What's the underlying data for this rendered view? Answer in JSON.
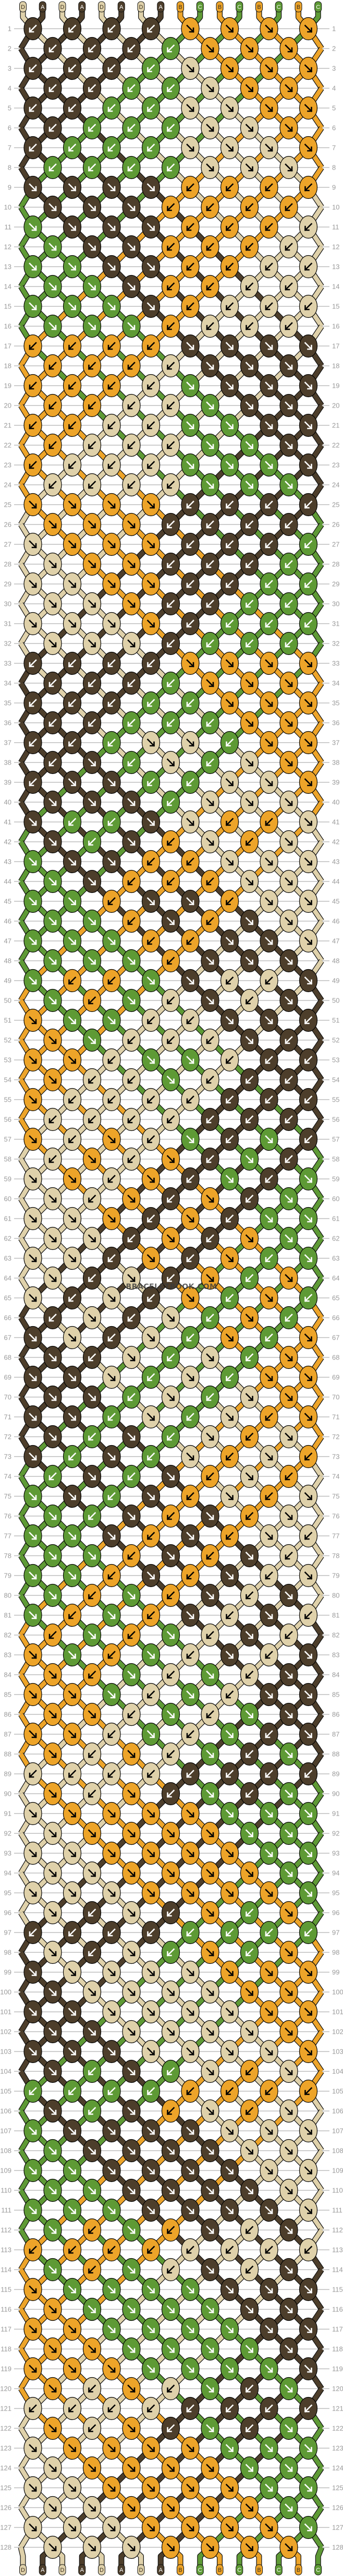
{
  "watermark": "BRACELETBOOK.COM",
  "strings": {
    "top": [
      "D",
      "A",
      "D",
      "A",
      "D",
      "A",
      "D",
      "A",
      "B",
      "C",
      "B",
      "C",
      "B",
      "C",
      "B",
      "C"
    ],
    "bottom": [
      "D",
      "A",
      "D",
      "A",
      "D",
      "A",
      "D",
      "A",
      "B",
      "C",
      "B",
      "C",
      "B",
      "C",
      "B",
      "C"
    ]
  },
  "colors": {
    "A": "#4d3e2b",
    "B": "#eda429",
    "C": "#5e9a35",
    "D": "#dfd1aa"
  },
  "knot_legend": {
    "R": "forward knot ↘",
    "L": "backward knot ↙"
  },
  "rows": [
    {
      "n": "1",
      "k": "LLLLRRRR"
    },
    {
      "n": "2",
      "k": "LLLLRRR"
    },
    {
      "n": "3",
      "k": "LLLLRRRR"
    },
    {
      "n": "4",
      "k": "LLLLRRR"
    },
    {
      "n": "5",
      "k": "LLLLRRRR"
    },
    {
      "n": "6",
      "k": "LLLLRRR"
    },
    {
      "n": "7",
      "k": "LLLLRRRR"
    },
    {
      "n": "8",
      "k": "LLLLRRR"
    },
    {
      "n": "9",
      "k": "RRRRLLLL"
    },
    {
      "n": "10",
      "k": "RRRLLLL"
    },
    {
      "n": "11",
      "k": "RRRRLLLL"
    },
    {
      "n": "12",
      "k": "RRRLLLL"
    },
    {
      "n": "13",
      "k": "RRRRLLLL"
    },
    {
      "n": "14",
      "k": "RRRLLLL"
    },
    {
      "n": "15",
      "k": "RRRRLLLL"
    },
    {
      "n": "16",
      "k": "RRRLLLL"
    },
    {
      "n": "17",
      "k": "LLLLRRRR"
    },
    {
      "n": "18",
      "k": "LLLLRRR"
    },
    {
      "n": "19",
      "k": "LLLLRRRR"
    },
    {
      "n": "20",
      "k": "LLLLRRR"
    },
    {
      "n": "21",
      "k": "LLLLRRRR"
    },
    {
      "n": "22",
      "k": "LLLLRRR"
    },
    {
      "n": "23",
      "k": "LLLLRRRR"
    },
    {
      "n": "24",
      "k": "LLLLRRR"
    },
    {
      "n": "25",
      "k": "RRRRLLLL"
    },
    {
      "n": "26",
      "k": "RRRLLLL"
    },
    {
      "n": "27",
      "k": "RRRRLLLL"
    },
    {
      "n": "28",
      "k": "RRRLLLL"
    },
    {
      "n": "29",
      "k": "RRRRLLLL"
    },
    {
      "n": "30",
      "k": "RRRLLLL"
    },
    {
      "n": "31",
      "k": "RRRRLLLL"
    },
    {
      "n": "32",
      "k": "RRRLLLL"
    },
    {
      "n": "33",
      "k": "LLLLRRRR"
    },
    {
      "n": "34",
      "k": "LLLLRRR"
    },
    {
      "n": "35",
      "k": "LLLLLRRR"
    },
    {
      "n": "36",
      "k": "LLLLLRR"
    },
    {
      "n": "37",
      "k": "LLLRRLRR"
    },
    {
      "n": "38",
      "k": "LRLRLRR"
    },
    {
      "n": "39",
      "k": "LRRLLRRR"
    },
    {
      "n": "40",
      "k": "RRRLRRR"
    },
    {
      "n": "41",
      "k": "RLLRRLLR"
    },
    {
      "n": "42",
      "k": "RLRLRLR"
    },
    {
      "n": "43",
      "k": "RRRLLRRR"
    },
    {
      "n": "44",
      "k": "RRLLLRR"
    },
    {
      "n": "45",
      "k": "RRLRRLRR"
    },
    {
      "n": "46",
      "k": "RRLRLRR"
    },
    {
      "n": "47",
      "k": "RRRLLRRR"
    },
    {
      "n": "48",
      "k": "RRRLRRR"
    },
    {
      "n": "49",
      "k": "RLLRRLLR"
    },
    {
      "n": "50",
      "k": "RLRLRLR"
    },
    {
      "n": "51",
      "k": "RRRLLRRL"
    },
    {
      "n": "52",
      "k": "RRLLLRL"
    },
    {
      "n": "53",
      "k": "RRLRRLLL"
    },
    {
      "n": "54",
      "k": "RLLRLLL"
    },
    {
      "n": "55",
      "k": "RLLLLLLL"
    },
    {
      "n": "56",
      "k": "LLLLLLL"
    },
    {
      "n": "57",
      "k": "RLRLRLRL"
    },
    {
      "n": "58",
      "k": "LRLRLRL"
    },
    {
      "n": "59",
      "k": "RRLRLRLR"
    },
    {
      "n": "60",
      "k": "RLRLRLR"
    },
    {
      "n": "61",
      "k": "RRRLRLRR"
    },
    {
      "n": "62",
      "k": "RRLRLRR"
    },
    {
      "n": "63",
      "k": "RRLRLRLR"
    },
    {
      "n": "64",
      "k": "RLRLRLR"
    },
    {
      "n": "65",
      "k": "RLRLRLRL"
    },
    {
      "n": "66",
      "k": "LRLRLRL"
    },
    {
      "n": "67",
      "k": "RRLRLRLR"
    },
    {
      "n": "68",
      "k": "RLRLRLR"
    },
    {
      "n": "69",
      "k": "RRRLRLRR"
    },
    {
      "n": "70",
      "k": "RRLRLRR"
    },
    {
      "n": "71",
      "k": "RRLRLRLR"
    },
    {
      "n": "72",
      "k": "RLRLRLR"
    },
    {
      "n": "73",
      "k": "RLRLRLRL"
    },
    {
      "n": "74",
      "k": "LRLRLRL"
    },
    {
      "n": "75",
      "k": "RRLRLRLR"
    },
    {
      "n": "76",
      "k": "RLRLRLR"
    },
    {
      "n": "77",
      "k": "RRRLRLRL"
    },
    {
      "n": "78",
      "k": "RRLRLRL"
    },
    {
      "n": "79",
      "k": "RRLRLRLR"
    },
    {
      "n": "80",
      "k": "RLRLRLR"
    },
    {
      "n": "81",
      "k": "RLRLRLRL"
    },
    {
      "n": "82",
      "k": "LRLRLRL"
    },
    {
      "n": "83",
      "k": "RRLRLRLR"
    },
    {
      "n": "84",
      "k": "RLRLRLR"
    },
    {
      "n": "85",
      "k": "RRRLRLRR"
    },
    {
      "n": "86",
      "k": "RRLRLRR"
    },
    {
      "n": "87",
      "k": "RRLRLRLR"
    },
    {
      "n": "88",
      "k": "RLRLRLR"
    },
    {
      "n": "89",
      "k": "LLLLLLLL"
    },
    {
      "n": "90",
      "k": "RLRLRLR"
    },
    {
      "n": "91",
      "k": "RRRRRRRR"
    },
    {
      "n": "92",
      "k": "RRRRRRR"
    },
    {
      "n": "93",
      "k": "RRRRRRRR"
    },
    {
      "n": "94",
      "k": "RRRRRRR"
    },
    {
      "n": "95",
      "k": "RRRRRRRR"
    },
    {
      "n": "96",
      "k": "RLRLRLR"
    },
    {
      "n": "97",
      "k": "LLLLLLLL"
    },
    {
      "n": "98",
      "k": "RLRLRLR"
    },
    {
      "n": "99",
      "k": "RRRRRRRR"
    },
    {
      "n": "100",
      "k": "RRRRRRR"
    },
    {
      "n": "101",
      "k": "RRRRRRRR"
    },
    {
      "n": "102",
      "k": "RRRRRRR"
    },
    {
      "n": "103",
      "k": "RRRRRRRR"
    },
    {
      "n": "104",
      "k": "RLRLRLR"
    },
    {
      "n": "105",
      "k": "LLLLLLLL"
    },
    {
      "n": "106",
      "k": "RLRLRLR"
    },
    {
      "n": "107",
      "k": "RRRRRRRR"
    },
    {
      "n": "108",
      "k": "RRRRRRR"
    },
    {
      "n": "109",
      "k": "RRRRRRRR"
    },
    {
      "n": "110",
      "k": "RRRRRRR"
    },
    {
      "n": "111",
      "k": "RRRRRRRR"
    },
    {
      "n": "112",
      "k": "RLRLRLR"
    },
    {
      "n": "113",
      "k": "LLLLLLLL"
    },
    {
      "n": "114",
      "k": "RLRLRLR"
    },
    {
      "n": "115",
      "k": "RRRRRRRR"
    },
    {
      "n": "116",
      "k": "RRRRRRR"
    },
    {
      "n": "117",
      "k": "RRRRRRRR"
    },
    {
      "n": "118",
      "k": "RRRRRRR"
    },
    {
      "n": "119",
      "k": "RRRRRRRR"
    },
    {
      "n": "120",
      "k": "RLRLRLR"
    },
    {
      "n": "121",
      "k": "LLLLLLLL"
    },
    {
      "n": "122",
      "k": "RLRLRLR"
    },
    {
      "n": "123",
      "k": "RRRRRRRR"
    },
    {
      "n": "124",
      "k": "RRRRRRR"
    },
    {
      "n": "125",
      "k": "RRRRRRRR"
    },
    {
      "n": "126",
      "k": "RRRRRRR"
    },
    {
      "n": "127",
      "k": "RRRRRRRR"
    },
    {
      "n": "128",
      "k": "RRRRRRR"
    }
  ]
}
